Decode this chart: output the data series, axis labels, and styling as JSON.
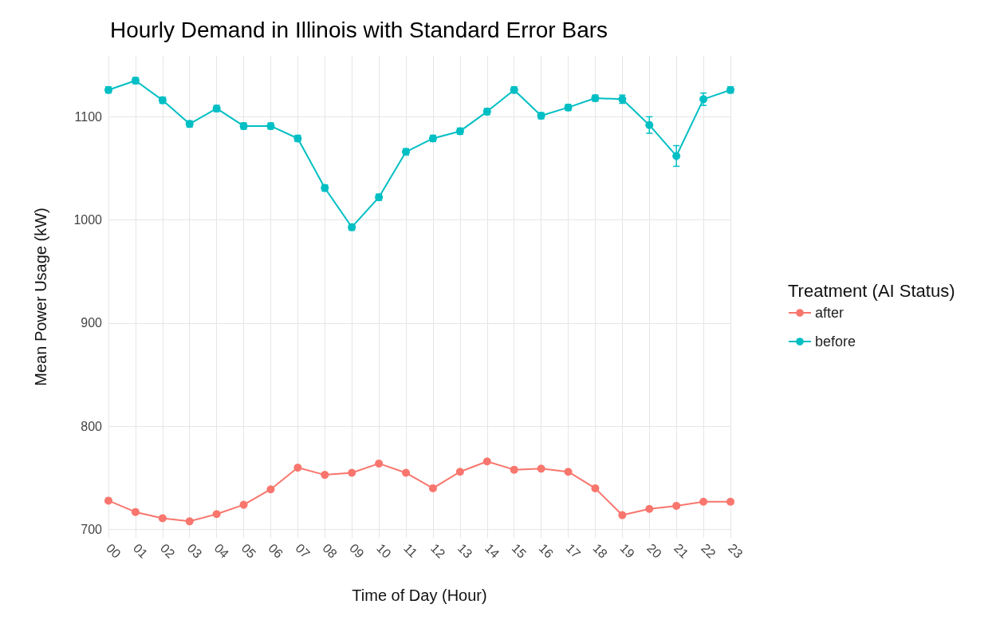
{
  "chart_data": {
    "type": "line",
    "title": "Hourly Demand in Illinois with Standard Error Bars",
    "xlabel": "Time of Day (Hour)",
    "ylabel": "Mean Power Usage (kW)",
    "legend_title": "Treatment (AI Status)",
    "categories": [
      "00",
      "01",
      "02",
      "03",
      "04",
      "05",
      "06",
      "07",
      "08",
      "09",
      "10",
      "11",
      "12",
      "13",
      "14",
      "15",
      "16",
      "17",
      "18",
      "19",
      "20",
      "21",
      "22",
      "23"
    ],
    "series": [
      {
        "name": "after",
        "color": "#f8766d",
        "values": [
          728,
          717,
          711,
          708,
          715,
          724,
          739,
          760,
          753,
          755,
          764,
          755,
          740,
          756,
          766,
          758,
          759,
          756,
          740,
          714,
          720,
          723,
          727,
          727
        ]
      },
      {
        "name": "before",
        "color": "#00bfc4",
        "values": [
          1126,
          1135,
          1116,
          1093,
          1108,
          1091,
          1091,
          1079,
          1031,
          993,
          1022,
          1066,
          1079,
          1086,
          1105,
          1126,
          1101,
          1109,
          1118,
          1117,
          1092,
          1062,
          1117,
          1126
        ],
        "errors": [
          3,
          3,
          3,
          3,
          3,
          3,
          3,
          3,
          3,
          3,
          3,
          3,
          3,
          3,
          3,
          3,
          3,
          3,
          3,
          4,
          8,
          10,
          6,
          3
        ]
      }
    ],
    "ylim": [
      692,
      1159
    ],
    "yticks": [
      700,
      800,
      900,
      1000,
      1100
    ],
    "grid": true,
    "legend": "right",
    "marker": "circle",
    "line_style": "solid"
  }
}
